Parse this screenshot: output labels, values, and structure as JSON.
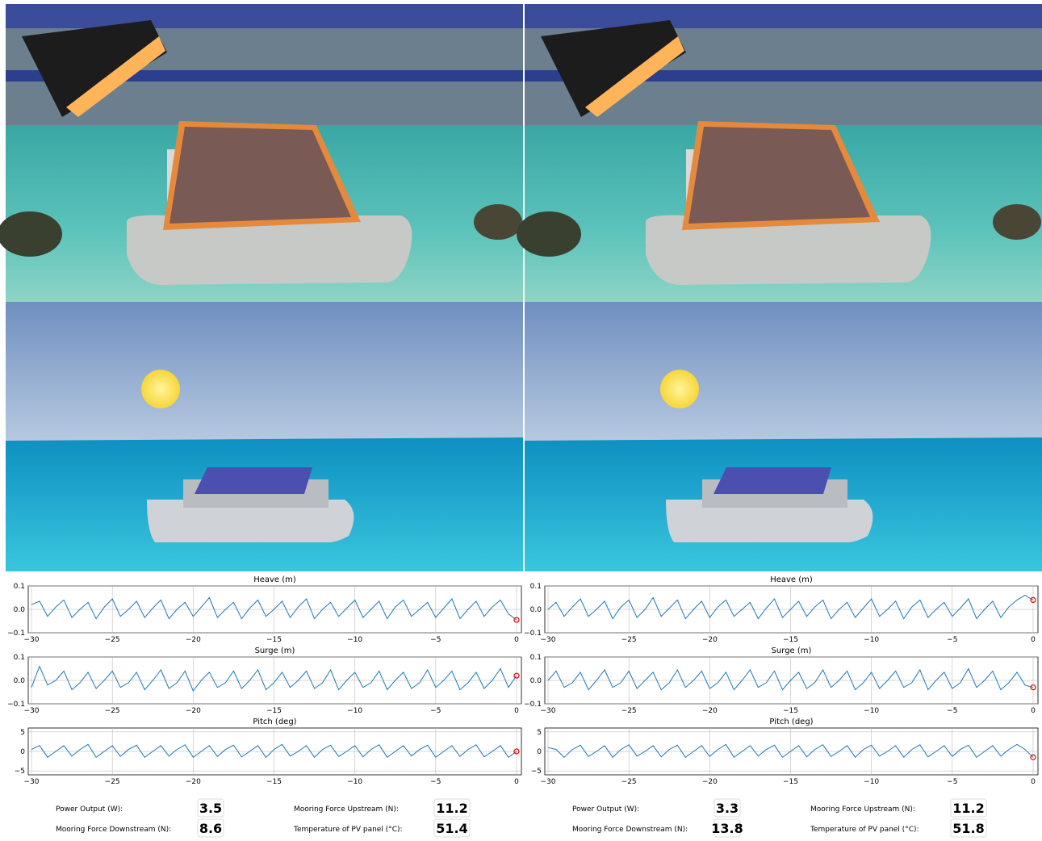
{
  "x": [
    -30,
    -29.5,
    -29,
    -28.5,
    -28,
    -27.5,
    -27,
    -26.5,
    -26,
    -25.5,
    -25,
    -24.5,
    -24,
    -23.5,
    -23,
    -22.5,
    -22,
    -21.5,
    -21,
    -20.5,
    -20,
    -19.5,
    -19,
    -18.5,
    -18,
    -17.5,
    -17,
    -16.5,
    -16,
    -15.5,
    -15,
    -14.5,
    -14,
    -13.5,
    -13,
    -12.5,
    -12,
    -11.5,
    -11,
    -10.5,
    -10,
    -9.5,
    -9,
    -8.5,
    -8,
    -7.5,
    -7,
    -6.5,
    -6,
    -5.5,
    -5,
    -4.5,
    -4,
    -3.5,
    -3,
    -2.5,
    -2,
    -1.5,
    -1,
    -0.5,
    0
  ],
  "xlim": [
    -30.2,
    0.3
  ],
  "xticks": [
    {
      "value": -30,
      "label": "−30"
    },
    {
      "value": -25,
      "label": "−25"
    },
    {
      "value": -20,
      "label": "−20"
    },
    {
      "value": -15,
      "label": "−15"
    },
    {
      "value": -10,
      "label": "−10"
    },
    {
      "value": -5,
      "label": "−5"
    },
    0
  ],
  "panels": [
    {
      "charts": [
        {
          "type": "line",
          "title": "Heave (m)",
          "color": "#1f77b4",
          "ylim": [
            -0.1,
            0.1
          ],
          "yticks": [
            {
              "value": -0.1,
              "label": "−0.1"
            },
            {
              "value": 0,
              "label": "0.0"
            },
            0.1
          ],
          "values": [
            0.02,
            0.035,
            -0.03,
            0.01,
            0.04,
            -0.035,
            0.0,
            0.03,
            -0.04,
            0.01,
            0.045,
            -0.03,
            0.0,
            0.035,
            -0.035,
            0.005,
            0.04,
            -0.04,
            0.0,
            0.03,
            -0.03,
            0.01,
            0.05,
            -0.035,
            0.0,
            0.03,
            -0.04,
            0.005,
            0.04,
            -0.03,
            0.0,
            0.035,
            -0.035,
            0.01,
            0.045,
            -0.04,
            0.0,
            0.03,
            -0.03,
            0.005,
            0.04,
            -0.035,
            0.0,
            0.035,
            -0.04,
            0.01,
            0.04,
            -0.03,
            0.0,
            0.03,
            -0.035,
            0.005,
            0.045,
            -0.04,
            0.0,
            0.035,
            -0.03,
            0.01,
            0.04,
            -0.02,
            -0.045
          ]
        },
        {
          "type": "line",
          "title": "Surge (m)",
          "color": "#1f77b4",
          "ylim": [
            -0.1,
            0.1
          ],
          "yticks": [
            {
              "value": -0.1,
              "label": "−0.1"
            },
            {
              "value": 0,
              "label": "0.0"
            },
            0.1
          ],
          "values": [
            -0.03,
            0.06,
            -0.02,
            0.0,
            0.04,
            -0.04,
            -0.01,
            0.035,
            -0.035,
            0.0,
            0.04,
            -0.03,
            -0.01,
            0.035,
            -0.04,
            0.0,
            0.045,
            -0.035,
            -0.01,
            0.04,
            -0.045,
            0.0,
            0.035,
            -0.03,
            -0.01,
            0.04,
            -0.035,
            0.0,
            0.045,
            -0.04,
            -0.01,
            0.035,
            -0.03,
            0.0,
            0.04,
            -0.035,
            -0.01,
            0.045,
            -0.04,
            0.0,
            0.035,
            -0.03,
            -0.01,
            0.04,
            -0.04,
            0.0,
            0.035,
            -0.035,
            -0.01,
            0.045,
            -0.03,
            0.0,
            0.04,
            -0.04,
            -0.01,
            0.035,
            -0.035,
            0.0,
            0.05,
            -0.03,
            0.02
          ]
        },
        {
          "type": "line",
          "title": "Pitch (deg)",
          "color": "#1f77b4",
          "ylim": [
            -6,
            6
          ],
          "yticks": [
            {
              "value": -5,
              "label": "−5"
            },
            0,
            5
          ],
          "values": [
            0.5,
            1.5,
            -1.5,
            0,
            1.5,
            -1.2,
            0.5,
            1.8,
            -1.5,
            0,
            1.5,
            -1.3,
            0.5,
            1.6,
            -1.5,
            0,
            1.5,
            -1.2,
            0.5,
            1.7,
            -1.5,
            0,
            1.5,
            -1.3,
            0.5,
            1.6,
            -1.4,
            0,
            1.5,
            -1.5,
            0.5,
            1.8,
            -1.2,
            0,
            1.5,
            -1.5,
            0.5,
            1.6,
            -1.3,
            0,
            1.5,
            -1.4,
            0.5,
            1.7,
            -1.5,
            0,
            1.5,
            -1.2,
            0.5,
            1.6,
            -1.5,
            0,
            1.5,
            -1.3,
            0.5,
            1.7,
            -1.4,
            0,
            1.5,
            -1.5,
            0
          ]
        }
      ],
      "readouts": [
        {
          "label": "Power Output (W):",
          "value": 3.5
        },
        {
          "label": "Mooring Force Downstream (N):",
          "value": 8.6
        },
        {
          "label": "Mooring Force Upstream (N):",
          "value": 11.2
        },
        {
          "label": "Temperature of PV panel (°C):",
          "value": 51.4
        }
      ]
    },
    {
      "charts": [
        {
          "type": "line",
          "title": "Heave (m)",
          "color": "#1f77b4",
          "ylim": [
            -0.1,
            0.1
          ],
          "yticks": [
            {
              "value": -0.1,
              "label": "−0.1"
            },
            {
              "value": 0,
              "label": "0.0"
            },
            0.1
          ],
          "values": [
            0.0,
            0.03,
            -0.03,
            0.01,
            0.045,
            -0.03,
            0.0,
            0.035,
            -0.04,
            0.01,
            0.04,
            -0.035,
            0.0,
            0.05,
            -0.03,
            0.005,
            0.04,
            -0.04,
            0.0,
            0.035,
            -0.035,
            0.01,
            0.04,
            -0.03,
            0.0,
            0.03,
            -0.04,
            0.005,
            0.045,
            -0.035,
            0.0,
            0.035,
            -0.03,
            0.01,
            0.04,
            -0.04,
            0.0,
            0.03,
            -0.035,
            0.005,
            0.045,
            -0.03,
            0.0,
            0.035,
            -0.04,
            0.01,
            0.04,
            -0.035,
            0.0,
            0.03,
            -0.03,
            0.005,
            0.045,
            -0.04,
            0.0,
            0.035,
            -0.035,
            0.01,
            0.04,
            0.06,
            0.04
          ]
        },
        {
          "type": "line",
          "title": "Surge (m)",
          "color": "#1f77b4",
          "ylim": [
            -0.1,
            0.1
          ],
          "yticks": [
            {
              "value": -0.1,
              "label": "−0.1"
            },
            {
              "value": 0,
              "label": "0.0"
            },
            0.1
          ],
          "values": [
            0.0,
            0.04,
            -0.03,
            -0.01,
            0.035,
            -0.04,
            0.0,
            0.045,
            -0.03,
            -0.01,
            0.04,
            -0.035,
            0.0,
            0.035,
            -0.04,
            -0.01,
            0.045,
            -0.03,
            0.0,
            0.04,
            -0.035,
            -0.01,
            0.035,
            -0.04,
            0.0,
            0.045,
            -0.03,
            -0.01,
            0.04,
            -0.04,
            0.0,
            0.035,
            -0.035,
            -0.01,
            0.045,
            -0.03,
            0.0,
            0.04,
            -0.04,
            -0.01,
            0.035,
            -0.035,
            0.0,
            0.04,
            -0.03,
            -0.01,
            0.045,
            -0.04,
            0.0,
            0.035,
            -0.035,
            -0.01,
            0.05,
            -0.03,
            0.0,
            0.04,
            -0.04,
            -0.01,
            0.035,
            -0.02,
            -0.03
          ]
        },
        {
          "type": "line",
          "title": "Pitch (deg)",
          "color": "#1f77b4",
          "ylim": [
            -6,
            6
          ],
          "yticks": [
            {
              "value": -5,
              "label": "−5"
            },
            0,
            5
          ],
          "values": [
            1,
            0.5,
            -1.5,
            0.5,
            1.6,
            -1.3,
            0,
            1.5,
            -1.5,
            0.5,
            1.7,
            -1.2,
            0,
            1.5,
            -1.4,
            0.5,
            1.6,
            -1.5,
            0,
            1.5,
            -1.3,
            0.5,
            1.8,
            -1.5,
            0,
            1.5,
            -1.2,
            0.5,
            1.6,
            -1.5,
            0,
            1.5,
            -1.4,
            0.5,
            1.7,
            -1.3,
            0,
            1.5,
            -1.5,
            0.5,
            1.6,
            -1.2,
            0,
            1.5,
            -1.5,
            0.5,
            1.7,
            -1.4,
            0,
            1.5,
            -1.3,
            0.5,
            1.6,
            -1.5,
            0,
            1.5,
            -1.2,
            0.5,
            1.8,
            0.5,
            -1.5
          ]
        }
      ],
      "readouts": [
        {
          "label": "Power Output (W):",
          "value": 3.3
        },
        {
          "label": "Mooring Force Downstream (N):",
          "value": 13.8
        },
        {
          "label": "Mooring Force Upstream (N):",
          "value": 11.2
        },
        {
          "label": "Temperature of PV panel (°C):",
          "value": 51.8
        }
      ]
    }
  ]
}
